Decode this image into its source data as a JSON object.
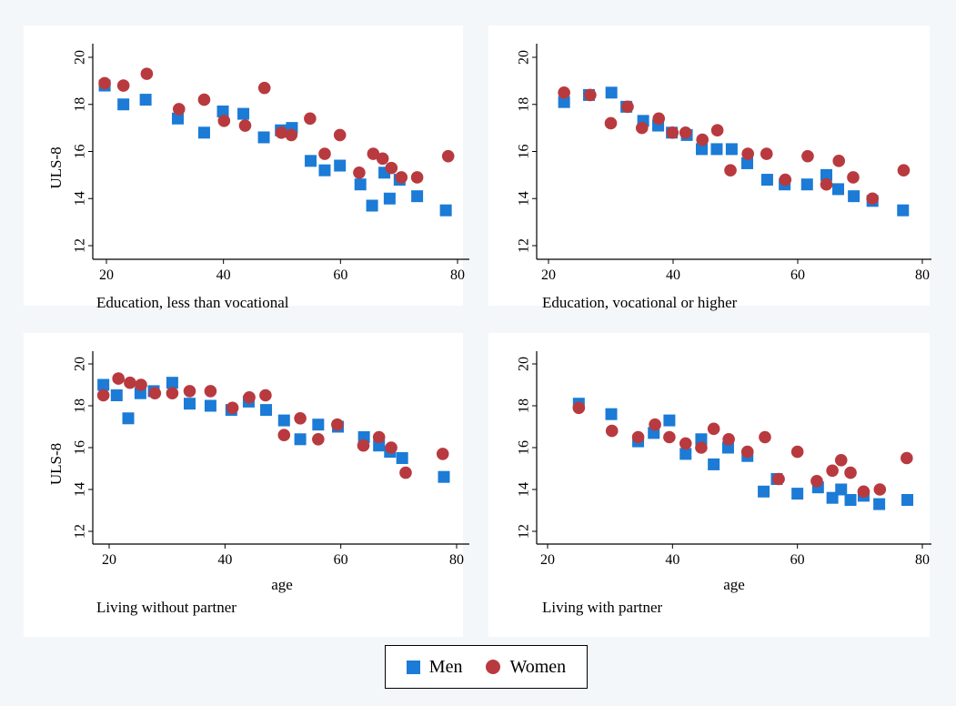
{
  "colors": {
    "men": "#1b7bd6",
    "women": "#b83a3f",
    "panel_bg": "#ffffff",
    "outer_bg": "#f4f7f9"
  },
  "legend": {
    "men_label": "Men",
    "women_label": "Women"
  },
  "chart_data": [
    {
      "type": "scatter",
      "title": "Education, less than vocational",
      "xlabel": "",
      "ylabel": "ULS-8",
      "xlim": [
        17,
        82
      ],
      "ylim": [
        11.5,
        20.5
      ],
      "xticks": [
        20,
        40,
        60,
        80
      ],
      "yticks": [
        12,
        14,
        16,
        18,
        20
      ],
      "series": [
        {
          "name": "Men",
          "marker": "square",
          "points": [
            [
              19.7,
              18.8
            ],
            [
              22.9,
              18.0
            ],
            [
              26.7,
              18.2
            ],
            [
              32.2,
              17.4
            ],
            [
              36.7,
              16.8
            ],
            [
              39.9,
              17.7
            ],
            [
              43.4,
              17.6
            ],
            [
              46.9,
              16.6
            ],
            [
              49.8,
              16.9
            ],
            [
              51.7,
              17.0
            ],
            [
              54.9,
              15.6
            ],
            [
              57.3,
              15.2
            ],
            [
              59.9,
              15.4
            ],
            [
              63.4,
              14.6
            ],
            [
              65.4,
              13.7
            ],
            [
              67.5,
              15.1
            ],
            [
              68.4,
              14.0
            ],
            [
              70.1,
              14.8
            ],
            [
              73.1,
              14.1
            ],
            [
              78.0,
              13.5
            ]
          ]
        },
        {
          "name": "Women",
          "marker": "circle",
          "points": [
            [
              19.7,
              18.9
            ],
            [
              22.9,
              18.8
            ],
            [
              26.9,
              19.3
            ],
            [
              32.4,
              17.8
            ],
            [
              36.7,
              18.2
            ],
            [
              40.1,
              17.3
            ],
            [
              43.7,
              17.1
            ],
            [
              47.0,
              18.7
            ],
            [
              49.9,
              16.8
            ],
            [
              51.6,
              16.7
            ],
            [
              54.8,
              17.4
            ],
            [
              57.3,
              15.9
            ],
            [
              59.9,
              16.7
            ],
            [
              63.2,
              15.1
            ],
            [
              65.6,
              15.9
            ],
            [
              67.2,
              15.7
            ],
            [
              68.7,
              15.3
            ],
            [
              70.4,
              14.9
            ],
            [
              73.1,
              14.9
            ],
            [
              78.4,
              15.8
            ]
          ]
        }
      ]
    },
    {
      "type": "scatter",
      "title": "Education, vocational or higher",
      "xlabel": "",
      "ylabel": "",
      "xlim": [
        17,
        82
      ],
      "ylim": [
        11.5,
        20.5
      ],
      "xticks": [
        20,
        40,
        60,
        80
      ],
      "yticks": [
        12,
        14,
        16,
        18,
        20
      ],
      "series": [
        {
          "name": "Men",
          "marker": "square",
          "points": [
            [
              22.5,
              18.1
            ],
            [
              26.5,
              18.4
            ],
            [
              30.1,
              18.5
            ],
            [
              32.5,
              17.9
            ],
            [
              35.2,
              17.3
            ],
            [
              37.6,
              17.1
            ],
            [
              39.8,
              16.8
            ],
            [
              42.2,
              16.7
            ],
            [
              44.6,
              16.1
            ],
            [
              47.0,
              16.1
            ],
            [
              49.4,
              16.1
            ],
            [
              51.9,
              15.5
            ],
            [
              55.1,
              14.8
            ],
            [
              57.9,
              14.6
            ],
            [
              61.5,
              14.6
            ],
            [
              64.6,
              15.0
            ],
            [
              66.5,
              14.4
            ],
            [
              69.0,
              14.1
            ],
            [
              72.0,
              13.9
            ],
            [
              76.9,
              13.5
            ]
          ]
        },
        {
          "name": "Women",
          "marker": "circle",
          "points": [
            [
              22.5,
              18.5
            ],
            [
              26.7,
              18.4
            ],
            [
              30.0,
              17.2
            ],
            [
              32.7,
              17.9
            ],
            [
              35.0,
              17.0
            ],
            [
              37.7,
              17.4
            ],
            [
              39.9,
              16.8
            ],
            [
              42.0,
              16.8
            ],
            [
              44.7,
              16.5
            ],
            [
              47.1,
              16.9
            ],
            [
              49.2,
              15.2
            ],
            [
              52.0,
              15.9
            ],
            [
              55.0,
              15.9
            ],
            [
              58.0,
              14.8
            ],
            [
              61.6,
              15.8
            ],
            [
              64.6,
              14.6
            ],
            [
              66.6,
              15.6
            ],
            [
              68.9,
              14.9
            ],
            [
              72.0,
              14.0
            ],
            [
              77.0,
              15.2
            ]
          ]
        }
      ]
    },
    {
      "type": "scatter",
      "title": "Living without partner",
      "xlabel": "age",
      "ylabel": "ULS-8",
      "xlim": [
        17,
        82
      ],
      "ylim": [
        11.5,
        20.5
      ],
      "xticks": [
        20,
        40,
        60,
        80
      ],
      "yticks": [
        12,
        14,
        16,
        18,
        20
      ],
      "series": [
        {
          "name": "Men",
          "marker": "square",
          "points": [
            [
              19.0,
              19.0
            ],
            [
              21.3,
              18.5
            ],
            [
              23.3,
              17.4
            ],
            [
              25.4,
              18.6
            ],
            [
              27.7,
              18.7
            ],
            [
              30.9,
              19.1
            ],
            [
              33.9,
              18.1
            ],
            [
              37.5,
              18.0
            ],
            [
              41.1,
              17.8
            ],
            [
              44.1,
              18.2
            ],
            [
              47.1,
              17.8
            ],
            [
              50.2,
              17.3
            ],
            [
              53.0,
              16.4
            ],
            [
              56.1,
              17.1
            ],
            [
              59.5,
              17.0
            ],
            [
              64.0,
              16.5
            ],
            [
              66.6,
              16.1
            ],
            [
              68.5,
              15.8
            ],
            [
              70.6,
              15.5
            ],
            [
              77.8,
              14.6
            ]
          ]
        },
        {
          "name": "Women",
          "marker": "circle",
          "points": [
            [
              19.0,
              18.5
            ],
            [
              21.6,
              19.3
            ],
            [
              23.6,
              19.1
            ],
            [
              25.5,
              19.0
            ],
            [
              27.9,
              18.6
            ],
            [
              30.9,
              18.6
            ],
            [
              33.9,
              18.7
            ],
            [
              37.5,
              18.7
            ],
            [
              41.3,
              17.9
            ],
            [
              44.2,
              18.4
            ],
            [
              47.0,
              18.5
            ],
            [
              50.2,
              16.6
            ],
            [
              53.0,
              17.4
            ],
            [
              56.1,
              16.4
            ],
            [
              59.4,
              17.1
            ],
            [
              63.9,
              16.1
            ],
            [
              66.6,
              16.5
            ],
            [
              68.7,
              16.0
            ],
            [
              71.2,
              14.8
            ],
            [
              77.6,
              15.7
            ]
          ]
        }
      ]
    },
    {
      "type": "scatter",
      "title": "Living with partner",
      "xlabel": "age",
      "ylabel": "",
      "xlim": [
        17,
        82
      ],
      "ylim": [
        11.5,
        20.5
      ],
      "xticks": [
        20,
        40,
        60,
        80
      ],
      "yticks": [
        12,
        14,
        16,
        18,
        20
      ],
      "series": [
        {
          "name": "Men",
          "marker": "square",
          "points": [
            [
              25.0,
              18.1
            ],
            [
              30.2,
              17.6
            ],
            [
              34.5,
              16.3
            ],
            [
              37.0,
              16.7
            ],
            [
              39.5,
              17.3
            ],
            [
              42.1,
              15.7
            ],
            [
              44.6,
              16.4
            ],
            [
              46.6,
              15.2
            ],
            [
              48.9,
              16.0
            ],
            [
              52.0,
              15.6
            ],
            [
              54.6,
              13.9
            ],
            [
              56.7,
              14.5
            ],
            [
              60.0,
              13.8
            ],
            [
              63.3,
              14.1
            ],
            [
              65.6,
              13.6
            ],
            [
              67.0,
              14.0
            ],
            [
              68.5,
              13.5
            ],
            [
              70.6,
              13.7
            ],
            [
              73.1,
              13.3
            ],
            [
              77.6,
              13.5
            ]
          ]
        },
        {
          "name": "Women",
          "marker": "circle",
          "points": [
            [
              25.0,
              17.9
            ],
            [
              30.3,
              16.8
            ],
            [
              34.5,
              16.5
            ],
            [
              37.2,
              17.1
            ],
            [
              39.5,
              16.5
            ],
            [
              42.1,
              16.2
            ],
            [
              44.6,
              16.0
            ],
            [
              46.6,
              16.9
            ],
            [
              49.0,
              16.4
            ],
            [
              52.0,
              15.8
            ],
            [
              54.8,
              16.5
            ],
            [
              57.0,
              14.5
            ],
            [
              60.0,
              15.8
            ],
            [
              63.1,
              14.4
            ],
            [
              65.6,
              14.9
            ],
            [
              67.0,
              15.4
            ],
            [
              68.5,
              14.8
            ],
            [
              70.6,
              13.9
            ],
            [
              73.2,
              14.0
            ],
            [
              77.5,
              15.5
            ]
          ]
        }
      ]
    }
  ]
}
